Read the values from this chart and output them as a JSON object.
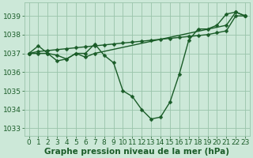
{
  "background_color": "#cce8d8",
  "grid_color": "#99c4aa",
  "line_color": "#1a5c28",
  "xlabel": "Graphe pression niveau de la mer (hPa)",
  "xlabel_fontsize": 7.5,
  "ylim": [
    1032.6,
    1039.7
  ],
  "xlim": [
    -0.5,
    23.5
  ],
  "yticks": [
    1033,
    1034,
    1035,
    1036,
    1037,
    1038,
    1039
  ],
  "xticks": [
    0,
    1,
    2,
    3,
    4,
    5,
    6,
    7,
    8,
    9,
    10,
    11,
    12,
    13,
    14,
    15,
    16,
    17,
    18,
    19,
    20,
    21,
    22,
    23
  ],
  "curve1_x": [
    0,
    1,
    2,
    3,
    4,
    5,
    6,
    7,
    8,
    9,
    10,
    11,
    12,
    13,
    14,
    15,
    16,
    17,
    18,
    19,
    20,
    21,
    22,
    23
  ],
  "curve1_y": [
    1037.0,
    1037.4,
    1037.0,
    1036.6,
    1036.7,
    1037.0,
    1037.0,
    1037.5,
    1036.9,
    1036.5,
    1035.0,
    1034.7,
    1034.0,
    1033.5,
    1033.6,
    1034.4,
    1035.9,
    1037.7,
    1038.3,
    1038.3,
    1038.5,
    1039.1,
    1039.2,
    1039.0
  ],
  "curve2_x": [
    0,
    1,
    2,
    3,
    4,
    5,
    6,
    7,
    8,
    9,
    10,
    11,
    12,
    13,
    14,
    15,
    16,
    17,
    18,
    19,
    20,
    21,
    22,
    23
  ],
  "curve2_y": [
    1037.0,
    1037.1,
    1037.15,
    1037.2,
    1037.25,
    1037.3,
    1037.35,
    1037.4,
    1037.45,
    1037.5,
    1037.55,
    1037.6,
    1037.65,
    1037.7,
    1037.75,
    1037.8,
    1037.85,
    1037.9,
    1037.95,
    1038.0,
    1038.1,
    1038.2,
    1039.0,
    1039.0
  ],
  "curve3_x": [
    0,
    1,
    2,
    3,
    4,
    5,
    6,
    7,
    21,
    22,
    23
  ],
  "curve3_y": [
    1037.0,
    1037.0,
    1037.0,
    1036.9,
    1036.7,
    1037.0,
    1036.8,
    1037.0,
    1038.5,
    1039.2,
    1039.0
  ],
  "tick_fontsize": 6.5,
  "marker_size": 2.5,
  "line_width": 1.0,
  "figsize": [
    3.2,
    2.0
  ],
  "dpi": 100
}
